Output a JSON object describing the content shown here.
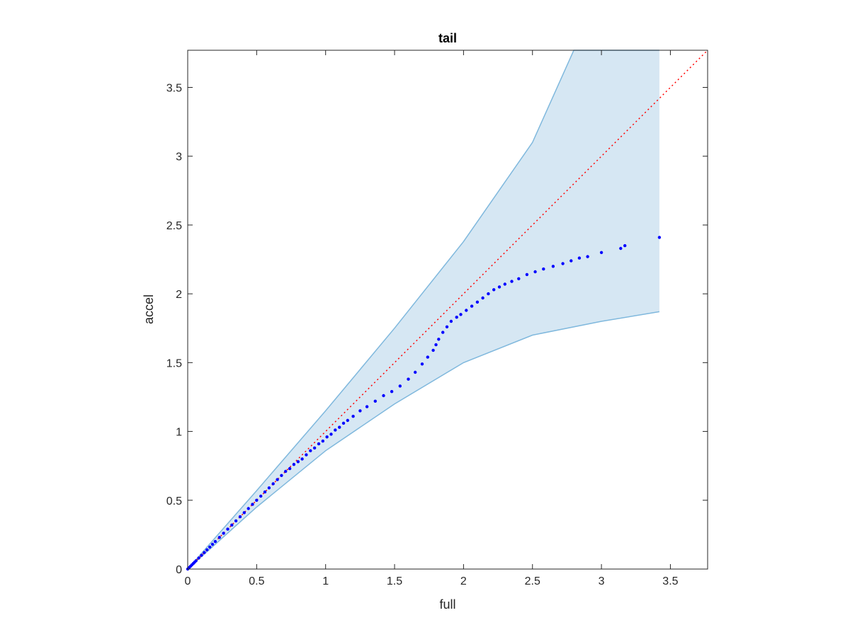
{
  "chart_data": {
    "type": "scatter",
    "title": "tail",
    "xlabel": "full",
    "ylabel": "accel",
    "xlim": [
      0,
      3.77
    ],
    "ylim": [
      0,
      3.77
    ],
    "x_ticks": [
      "0",
      "0.5",
      "1",
      "1.5",
      "2",
      "2.5",
      "3",
      "3.5"
    ],
    "y_ticks": [
      "0",
      "0.5",
      "1",
      "1.5",
      "2",
      "2.5",
      "3",
      "3.5"
    ],
    "x_tick_values": [
      0,
      0.5,
      1,
      1.5,
      2,
      2.5,
      3,
      3.5
    ],
    "y_tick_values": [
      0,
      0.5,
      1,
      1.5,
      2,
      2.5,
      3,
      3.5
    ],
    "grid": false,
    "box": true,
    "confidence_band": {
      "upper": [
        [
          0,
          0
        ],
        [
          0.5,
          0.57
        ],
        [
          1,
          1.15
        ],
        [
          1.5,
          1.75
        ],
        [
          2,
          2.38
        ],
        [
          2.5,
          3.1
        ],
        [
          2.8,
          3.77
        ],
        [
          3.42,
          3.77
        ]
      ],
      "lower": [
        [
          0,
          0
        ],
        [
          0.5,
          0.45
        ],
        [
          1,
          0.86
        ],
        [
          1.5,
          1.2
        ],
        [
          2,
          1.5
        ],
        [
          2.5,
          1.7
        ],
        [
          3,
          1.8
        ],
        [
          3.42,
          1.87
        ]
      ],
      "fill_color": "#d6e7f3",
      "edge_color": "#7fb8dd"
    },
    "reference_line": {
      "x": [
        0,
        3.77
      ],
      "y": [
        0,
        3.77
      ],
      "color": "#ff0000",
      "style": "dotted"
    },
    "series": [
      {
        "color": "#0000ff",
        "x": [
          0.0,
          0.01,
          0.02,
          0.03,
          0.04,
          0.05,
          0.06,
          0.08,
          0.1,
          0.12,
          0.14,
          0.16,
          0.18,
          0.2,
          0.23,
          0.26,
          0.29,
          0.32,
          0.35,
          0.38,
          0.41,
          0.44,
          0.47,
          0.5,
          0.53,
          0.56,
          0.59,
          0.62,
          0.65,
          0.68,
          0.71,
          0.74,
          0.77,
          0.8,
          0.83,
          0.86,
          0.89,
          0.92,
          0.95,
          0.98,
          1.01,
          1.04,
          1.07,
          1.1,
          1.13,
          1.16,
          1.2,
          1.25,
          1.3,
          1.36,
          1.42,
          1.48,
          1.54,
          1.6,
          1.65,
          1.7,
          1.74,
          1.78,
          1.8,
          1.82,
          1.85,
          1.88,
          1.91,
          1.95,
          1.98,
          2.02,
          2.06,
          2.1,
          2.14,
          2.18,
          2.22,
          2.26,
          2.3,
          2.35,
          2.4,
          2.46,
          2.52,
          2.58,
          2.65,
          2.72,
          2.78,
          2.84,
          2.9,
          3.0,
          3.14,
          3.17,
          3.42
        ],
        "y": [
          0.0,
          0.01,
          0.02,
          0.03,
          0.04,
          0.05,
          0.06,
          0.08,
          0.1,
          0.12,
          0.14,
          0.16,
          0.18,
          0.2,
          0.23,
          0.26,
          0.29,
          0.32,
          0.35,
          0.38,
          0.41,
          0.44,
          0.47,
          0.5,
          0.53,
          0.56,
          0.59,
          0.62,
          0.65,
          0.68,
          0.71,
          0.73,
          0.76,
          0.78,
          0.8,
          0.83,
          0.86,
          0.88,
          0.91,
          0.93,
          0.96,
          0.98,
          1.01,
          1.03,
          1.06,
          1.08,
          1.11,
          1.15,
          1.18,
          1.22,
          1.26,
          1.29,
          1.33,
          1.38,
          1.43,
          1.49,
          1.54,
          1.59,
          1.63,
          1.67,
          1.72,
          1.76,
          1.8,
          1.83,
          1.85,
          1.88,
          1.91,
          1.94,
          1.97,
          2.0,
          2.03,
          2.05,
          2.07,
          2.09,
          2.11,
          2.14,
          2.16,
          2.18,
          2.2,
          2.22,
          2.24,
          2.26,
          2.27,
          2.3,
          2.33,
          2.35,
          2.41
        ]
      }
    ]
  }
}
